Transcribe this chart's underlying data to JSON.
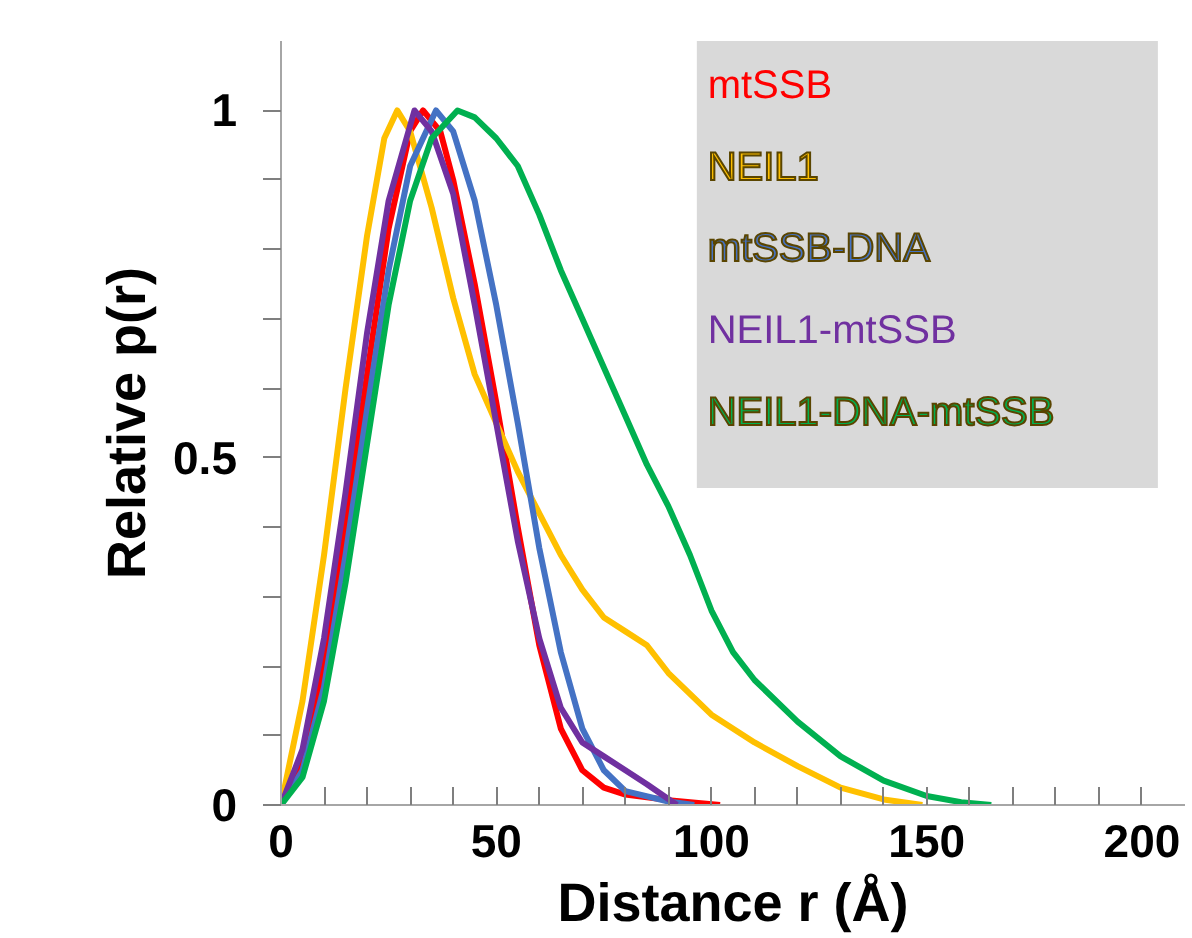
{
  "chart_data": {
    "type": "line",
    "xlabel": "Distance r (Å)",
    "ylabel": "Relative p(r)",
    "xlim": [
      0,
      210
    ],
    "ylim": [
      0,
      1.1
    ],
    "xticks": [
      0,
      {
        "value": 10,
        "label": null
      },
      {
        "value": 20,
        "label": null
      },
      {
        "value": 30,
        "label": null
      },
      {
        "value": 40,
        "label": null
      },
      50,
      {
        "value": 60,
        "label": null
      },
      {
        "value": 70,
        "label": null
      },
      {
        "value": 80,
        "label": null
      },
      {
        "value": 90,
        "label": null
      },
      100,
      {
        "value": 110,
        "label": null
      },
      {
        "value": 120,
        "label": null
      },
      {
        "value": 130,
        "label": null
      },
      {
        "value": 140,
        "label": null
      },
      150,
      {
        "value": 160,
        "label": null
      },
      {
        "value": 170,
        "label": null
      },
      {
        "value": 180,
        "label": null
      },
      {
        "value": 190,
        "label": null
      },
      200
    ],
    "yticks": [
      0,
      {
        "value": 0.1,
        "label": null
      },
      {
        "value": 0.2,
        "label": null
      },
      {
        "value": 0.3,
        "label": null
      },
      {
        "value": 0.4,
        "label": null
      },
      0.5,
      {
        "value": 0.6,
        "label": null
      },
      {
        "value": 0.7,
        "label": null
      },
      {
        "value": 0.8,
        "label": null
      },
      {
        "value": 0.9,
        "label": null
      },
      1
    ],
    "grid": false,
    "legend": "top right",
    "marker": "none",
    "line_style": "solid",
    "series": [
      {
        "name": "mtSSB",
        "color": "#ff0000",
        "x": [
          0,
          5,
          10,
          15,
          20,
          25,
          30,
          33,
          37,
          40,
          45,
          50,
          55,
          60,
          65,
          70,
          75,
          80,
          90,
          102
        ],
        "values": [
          0,
          0.06,
          0.2,
          0.4,
          0.62,
          0.83,
          0.97,
          1,
          0.97,
          0.9,
          0.75,
          0.58,
          0.4,
          0.23,
          0.11,
          0.05,
          0.025,
          0.015,
          0.007,
          0
        ]
      },
      {
        "name": "NEIL1",
        "color": "#ffc000",
        "x": [
          0,
          5,
          10,
          15,
          20,
          24,
          27,
          30,
          35,
          40,
          45,
          50,
          55,
          60,
          65,
          70,
          75,
          80,
          85,
          90,
          95,
          100,
          110,
          120,
          130,
          140,
          149
        ],
        "values": [
          0,
          0.15,
          0.36,
          0.6,
          0.82,
          0.96,
          1,
          0.97,
          0.86,
          0.73,
          0.62,
          0.55,
          0.48,
          0.42,
          0.36,
          0.31,
          0.27,
          0.25,
          0.23,
          0.19,
          0.16,
          0.13,
          0.09,
          0.056,
          0.025,
          0.008,
          0
        ]
      },
      {
        "name": "mtSSB-DNA",
        "color": "#4472c4",
        "x": [
          0,
          5,
          10,
          15,
          20,
          25,
          30,
          36,
          40,
          45,
          50,
          55,
          60,
          65,
          70,
          75,
          80,
          90,
          96
        ],
        "values": [
          0,
          0.05,
          0.17,
          0.36,
          0.57,
          0.77,
          0.92,
          1,
          0.97,
          0.87,
          0.72,
          0.55,
          0.37,
          0.22,
          0.11,
          0.05,
          0.02,
          0.005,
          0
        ]
      },
      {
        "name": "NEIL1-mtSSB",
        "color": "#7030a0",
        "x": [
          0,
          5,
          10,
          15,
          20,
          25,
          31,
          35,
          40,
          45,
          50,
          55,
          60,
          65,
          70,
          75,
          80,
          85,
          92
        ],
        "values": [
          0,
          0.08,
          0.24,
          0.45,
          0.68,
          0.87,
          1,
          0.97,
          0.88,
          0.72,
          0.55,
          0.38,
          0.24,
          0.14,
          0.09,
          0.07,
          0.05,
          0.03,
          0
        ]
      },
      {
        "name": "NEIL1-DNA-mtSSB",
        "color": "#00b050",
        "x": [
          0,
          5,
          10,
          15,
          20,
          25,
          30,
          35,
          41,
          45,
          50,
          55,
          60,
          65,
          70,
          75,
          80,
          85,
          90,
          95,
          100,
          105,
          110,
          120,
          130,
          140,
          150,
          158,
          165
        ],
        "values": [
          0,
          0.04,
          0.15,
          0.32,
          0.52,
          0.72,
          0.87,
          0.96,
          1,
          0.99,
          0.96,
          0.92,
          0.85,
          0.77,
          0.7,
          0.63,
          0.56,
          0.49,
          0.43,
          0.36,
          0.28,
          0.22,
          0.18,
          0.12,
          0.07,
          0.035,
          0.013,
          0.004,
          0
        ]
      }
    ]
  }
}
